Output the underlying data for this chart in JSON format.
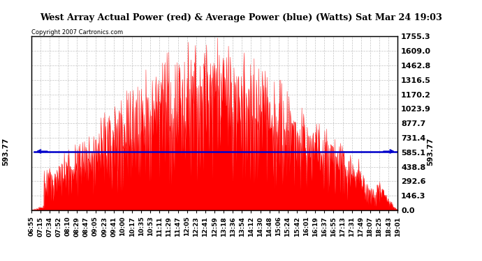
{
  "title": "West Array Actual Power (red) & Average Power (blue) (Watts) Sat Mar 24 19:03",
  "copyright": "Copyright 2007 Cartronics.com",
  "avg_power": 593.77,
  "y_max": 1755.3,
  "y_ticks": [
    0.0,
    146.3,
    292.6,
    438.8,
    585.1,
    731.4,
    877.7,
    1023.9,
    1170.2,
    1316.5,
    1462.8,
    1609.0,
    1755.3
  ],
  "x_labels": [
    "06:55",
    "07:15",
    "07:34",
    "07:52",
    "08:10",
    "08:29",
    "08:47",
    "09:05",
    "09:23",
    "09:41",
    "10:00",
    "10:17",
    "10:35",
    "10:53",
    "11:11",
    "11:29",
    "11:47",
    "12:05",
    "12:23",
    "12:41",
    "12:59",
    "13:18",
    "13:36",
    "13:54",
    "14:12",
    "14:30",
    "14:48",
    "15:06",
    "15:24",
    "15:42",
    "16:01",
    "16:19",
    "16:37",
    "16:55",
    "17:13",
    "17:31",
    "17:49",
    "18:07",
    "18:25",
    "18:43",
    "19:01"
  ],
  "bg_color": "#ffffff",
  "red_color": "#ff0000",
  "blue_color": "#0000cc",
  "grid_color": "#aaaaaa",
  "title_bg": "#d4d4d4"
}
